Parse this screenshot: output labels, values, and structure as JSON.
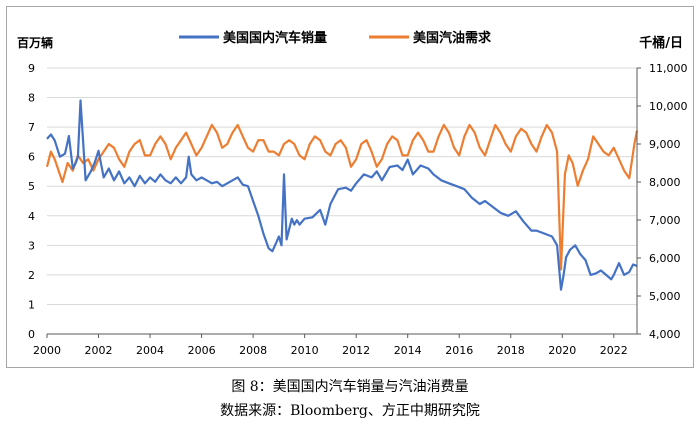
{
  "chart_data": {
    "type": "line",
    "title": "",
    "y_left_label": "百万辆",
    "y_right_label": "千桶/日",
    "y_left_range": [
      0,
      9
    ],
    "y_right_range": [
      4000,
      11000
    ],
    "x_range": [
      2000,
      2022.9
    ],
    "x_tick_labels": [
      "2000",
      "2002",
      "2004",
      "2006",
      "2008",
      "2010",
      "2012",
      "2014",
      "2016",
      "2018",
      "2020",
      "2022"
    ],
    "y_left_tick_labels": [
      "0",
      "1",
      "2",
      "3",
      "4",
      "5",
      "6",
      "7",
      "8",
      "9"
    ],
    "y_right_tick_labels": [
      "4,000",
      "5,000",
      "6,000",
      "7,000",
      "8,000",
      "9,000",
      "10,000",
      "11,000"
    ],
    "grid": true,
    "legend": "top",
    "series": [
      {
        "name": "美国国内汽车销量",
        "color": "#4472c4",
        "axis": "left",
        "x": [
          2000.0,
          2000.15,
          2000.3,
          2000.5,
          2000.7,
          2000.85,
          2001.0,
          2001.12,
          2001.2,
          2001.3,
          2001.5,
          2001.7,
          2001.85,
          2002.0,
          2002.2,
          2002.4,
          2002.6,
          2002.8,
          2003.0,
          2003.2,
          2003.4,
          2003.6,
          2003.8,
          2004.0,
          2004.2,
          2004.4,
          2004.6,
          2004.8,
          2005.0,
          2005.2,
          2005.4,
          2005.5,
          2005.6,
          2005.8,
          2006.0,
          2006.2,
          2006.4,
          2006.6,
          2006.8,
          2007.0,
          2007.2,
          2007.4,
          2007.6,
          2007.8,
          2008.0,
          2008.2,
          2008.4,
          2008.6,
          2008.75,
          2008.9,
          2009.0,
          2009.1,
          2009.2,
          2009.3,
          2009.5,
          2009.6,
          2009.7,
          2009.8,
          2010.0,
          2010.3,
          2010.6,
          2010.8,
          2011.0,
          2011.3,
          2011.6,
          2011.8,
          2012.0,
          2012.3,
          2012.6,
          2012.8,
          2013.0,
          2013.3,
          2013.6,
          2013.8,
          2014.0,
          2014.2,
          2014.5,
          2014.8,
          2015.0,
          2015.3,
          2015.6,
          2015.9,
          2016.2,
          2016.5,
          2016.8,
          2017.0,
          2017.3,
          2017.6,
          2017.9,
          2018.2,
          2018.5,
          2018.8,
          2019.0,
          2019.3,
          2019.6,
          2019.8,
          2019.95,
          2020.05,
          2020.15,
          2020.3,
          2020.5,
          2020.7,
          2020.9,
          2021.1,
          2021.3,
          2021.5,
          2021.7,
          2021.9,
          2022.0,
          2022.2,
          2022.4,
          2022.6,
          2022.75,
          2022.9
        ],
        "values": [
          6.6,
          6.75,
          6.55,
          6.0,
          6.1,
          6.7,
          5.6,
          5.8,
          6.0,
          7.9,
          5.2,
          5.5,
          5.8,
          6.2,
          5.3,
          5.6,
          5.2,
          5.5,
          5.1,
          5.3,
          5.0,
          5.35,
          5.1,
          5.3,
          5.15,
          5.4,
          5.2,
          5.1,
          5.3,
          5.1,
          5.3,
          6.0,
          5.4,
          5.2,
          5.3,
          5.2,
          5.1,
          5.15,
          5.0,
          5.1,
          5.2,
          5.3,
          5.05,
          5.0,
          4.5,
          4.0,
          3.4,
          2.9,
          2.8,
          3.1,
          3.3,
          3.0,
          5.4,
          3.2,
          3.9,
          3.7,
          3.85,
          3.7,
          3.9,
          3.95,
          4.2,
          3.7,
          4.4,
          4.9,
          4.95,
          4.85,
          5.1,
          5.4,
          5.3,
          5.5,
          5.2,
          5.65,
          5.7,
          5.55,
          5.9,
          5.4,
          5.7,
          5.6,
          5.4,
          5.2,
          5.1,
          5.0,
          4.9,
          4.6,
          4.4,
          4.5,
          4.3,
          4.1,
          4.0,
          4.15,
          3.8,
          3.5,
          3.5,
          3.4,
          3.3,
          3.0,
          1.5,
          2.0,
          2.6,
          2.85,
          3.0,
          2.7,
          2.5,
          2.0,
          2.05,
          2.15,
          2.0,
          1.85,
          2.0,
          2.4,
          2.0,
          2.1,
          2.35,
          2.3
        ]
      },
      {
        "name": "美国汽油需求",
        "color": "#ed7d31",
        "axis": "right",
        "x": [
          2000.0,
          2000.15,
          2000.3,
          2000.45,
          2000.6,
          2000.8,
          2001.0,
          2001.2,
          2001.4,
          2001.6,
          2001.8,
          2002.0,
          2002.2,
          2002.4,
          2002.6,
          2002.8,
          2003.0,
          2003.2,
          2003.4,
          2003.6,
          2003.8,
          2004.0,
          2004.2,
          2004.4,
          2004.6,
          2004.8,
          2005.0,
          2005.2,
          2005.4,
          2005.6,
          2005.8,
          2006.0,
          2006.2,
          2006.4,
          2006.6,
          2006.8,
          2007.0,
          2007.2,
          2007.4,
          2007.6,
          2007.8,
          2008.0,
          2008.2,
          2008.4,
          2008.6,
          2008.8,
          2009.0,
          2009.2,
          2009.4,
          2009.6,
          2009.8,
          2010.0,
          2010.2,
          2010.4,
          2010.6,
          2010.8,
          2011.0,
          2011.2,
          2011.4,
          2011.6,
          2011.8,
          2012.0,
          2012.2,
          2012.4,
          2012.6,
          2012.8,
          2013.0,
          2013.2,
          2013.4,
          2013.6,
          2013.8,
          2014.0,
          2014.2,
          2014.4,
          2014.6,
          2014.8,
          2015.0,
          2015.2,
          2015.4,
          2015.6,
          2015.8,
          2016.0,
          2016.2,
          2016.4,
          2016.6,
          2016.8,
          2017.0,
          2017.2,
          2017.4,
          2017.6,
          2017.8,
          2018.0,
          2018.2,
          2018.4,
          2018.6,
          2018.8,
          2019.0,
          2019.2,
          2019.4,
          2019.6,
          2019.8,
          2019.95,
          2020.1,
          2020.25,
          2020.4,
          2020.6,
          2020.8,
          2021.0,
          2021.2,
          2021.4,
          2021.6,
          2021.8,
          2022.0,
          2022.2,
          2022.4,
          2022.6,
          2022.8,
          2022.9
        ],
        "values": [
          8.4,
          8.8,
          8.6,
          8.3,
          8.0,
          8.5,
          8.3,
          8.7,
          8.5,
          8.6,
          8.3,
          8.6,
          8.8,
          9.0,
          8.9,
          8.6,
          8.4,
          8.8,
          9.0,
          9.1,
          8.7,
          8.7,
          9.0,
          9.2,
          9.0,
          8.6,
          8.9,
          9.1,
          9.3,
          9.0,
          8.7,
          8.9,
          9.2,
          9.5,
          9.3,
          8.9,
          9.0,
          9.3,
          9.5,
          9.2,
          8.9,
          8.8,
          9.1,
          9.1,
          8.8,
          8.8,
          8.7,
          9.0,
          9.1,
          9.0,
          8.7,
          8.6,
          9.0,
          9.2,
          9.1,
          8.8,
          8.7,
          9.0,
          9.1,
          8.9,
          8.4,
          8.6,
          9.0,
          9.1,
          8.8,
          8.4,
          8.6,
          9.0,
          9.2,
          9.1,
          8.7,
          8.7,
          9.1,
          9.3,
          9.1,
          8.8,
          8.8,
          9.2,
          9.5,
          9.3,
          8.9,
          8.7,
          9.2,
          9.5,
          9.3,
          8.9,
          8.7,
          9.1,
          9.5,
          9.3,
          9.0,
          8.8,
          9.2,
          9.4,
          9.3,
          9.0,
          8.8,
          9.2,
          9.5,
          9.3,
          8.8,
          5.7,
          8.2,
          8.7,
          8.5,
          7.9,
          8.3,
          8.6,
          9.2,
          9.0,
          8.8,
          8.7,
          8.9,
          8.6,
          8.3,
          8.1,
          9.0,
          9.35
        ]
      }
    ]
  },
  "caption": {
    "line1": "图 8：美国国内汽车销量与汽油消费量",
    "line2": "数据来源：Bloomberg、方正中期研究院"
  }
}
